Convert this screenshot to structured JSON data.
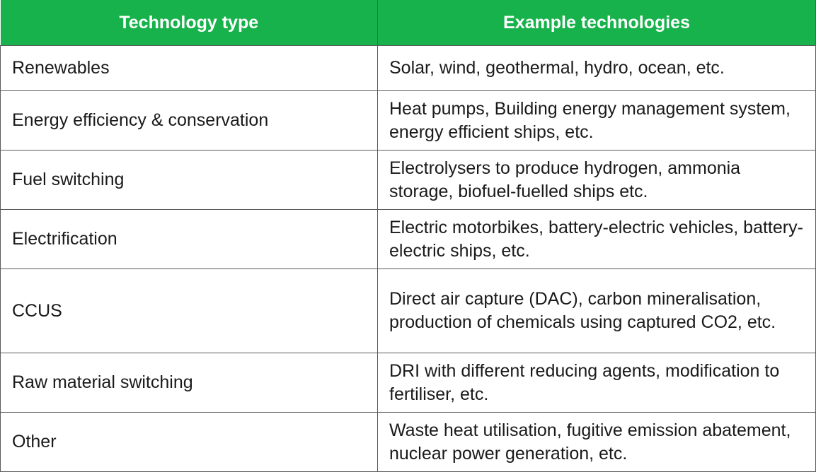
{
  "table": {
    "header": {
      "col1": "Technology type",
      "col2": "Example technologies"
    },
    "rows": [
      {
        "type": "Renewables",
        "examples": "Solar, wind, geothermal, hydro, ocean, etc."
      },
      {
        "type": "Energy efficiency & conservation",
        "examples": "Heat pumps, Building energy management system, energy efficient ships, etc."
      },
      {
        "type": "Fuel switching",
        "examples": "Electrolysers to produce hydrogen, ammonia storage, biofuel-fuelled ships etc."
      },
      {
        "type": "Electrification",
        "examples": "Electric motorbikes, battery-electric vehicles, battery-electric ships, etc."
      },
      {
        "type": "CCUS",
        "examples": "Direct air capture (DAC), carbon mineralisation, production of chemicals using captured CO2, etc."
      },
      {
        "type": "Raw material switching",
        "examples": "DRI with different reducing agents, modification to fertiliser, etc."
      },
      {
        "type": "Other",
        "examples": "Waste heat utilisation, fugitive emission abatement, nuclear power generation, etc."
      }
    ]
  },
  "colors": {
    "header_bg": "#17b24b",
    "header_text": "#ffffff",
    "border": "#5a5a5a"
  }
}
